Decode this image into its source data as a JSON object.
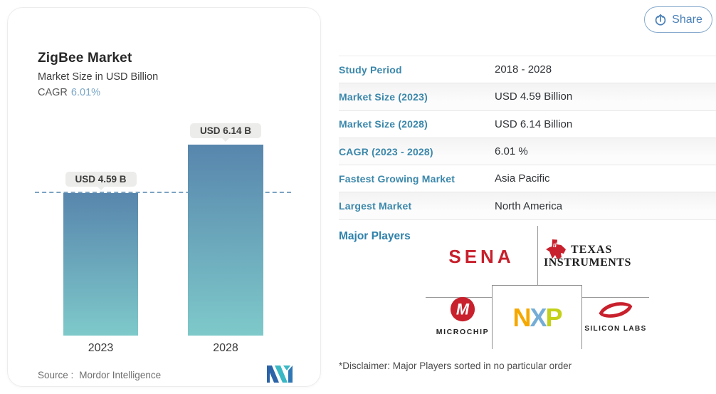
{
  "header": {
    "share_label": "Share"
  },
  "chart_card": {
    "title": "ZigBee Market",
    "subtitle": "Market Size in USD Billion",
    "cagr_label": "CAGR",
    "cagr_value": "6.01%",
    "source_label": "Source :",
    "source_name": "Mordor Intelligence"
  },
  "chart_data": {
    "type": "bar",
    "categories": [
      "2023",
      "2028"
    ],
    "values": [
      4.59,
      6.14
    ],
    "bar_labels": [
      "USD 4.59 B",
      "USD 6.14 B"
    ],
    "title": "ZigBee Market",
    "ylabel": "Market Size in USD Billion",
    "ylim": [
      0,
      6.6
    ],
    "reference_line": 4.59,
    "grid": false,
    "legend": "none",
    "bar_color_top": "#5886ad",
    "bar_color_bottom": "#7ec9ca",
    "reference_line_color": "#6493b8"
  },
  "stats_table": {
    "rows": [
      {
        "label": "Study Period",
        "value": "2018 - 2028"
      },
      {
        "label": "Market Size (2023)",
        "value": "USD 4.59 Billion"
      },
      {
        "label": "Market Size (2028)",
        "value": "USD 6.14 Billion"
      },
      {
        "label": "CAGR (2023 - 2028)",
        "value": "6.01 %"
      },
      {
        "label": "Fastest Growing Market",
        "value": "Asia Pacific"
      },
      {
        "label": "Largest Market",
        "value": "North America"
      }
    ]
  },
  "major_players": {
    "heading": "Major Players",
    "sena": {
      "text": "SENA"
    },
    "texas_instruments": {
      "line1": "TEXAS",
      "line2": "INSTRUMENTS"
    },
    "microchip": {
      "text": "MICROCHIP"
    },
    "nxp": {
      "n": "N",
      "x": "X",
      "p": "P"
    },
    "silicon_labs": {
      "text": "SILICON LABS"
    },
    "disclaimer": "*Disclaimer: Major Players sorted in no particular order"
  },
  "colors": {
    "accent_blue": "#3a87ab",
    "share_blue": "#4a80b8",
    "logo_red": "#c8202c",
    "value_text": "#2f3337"
  }
}
